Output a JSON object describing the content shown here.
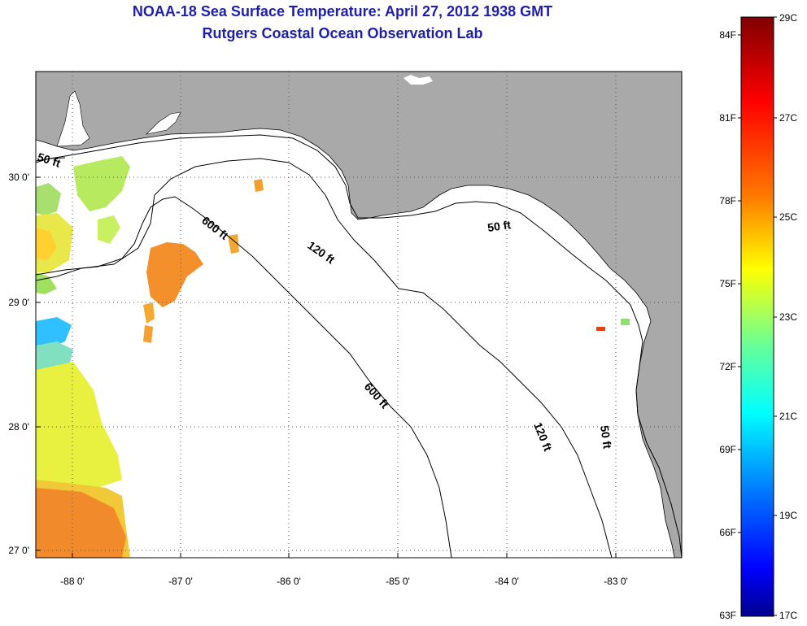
{
  "title": {
    "line1": "NOAA-18 Sea Surface Temperature:  April 27, 2012 1938 GMT",
    "line2": "Rutgers Coastal Ocean Observation Lab"
  },
  "map": {
    "lon_ticks": [
      "-88 0'",
      "-87 0'",
      "-86 0'",
      "-85 0'",
      "-84 0'",
      "-83 0'"
    ],
    "lat_ticks": [
      "30 0'",
      "29 0'",
      "28 0'",
      "27 0'"
    ],
    "contour_labels": [
      "50 ft",
      "600 ft",
      "120 ft",
      "50 ft",
      "600 ft",
      "120 ft",
      "50 ft"
    ],
    "colors": {
      "land": "#a9a9a9",
      "water": "#ffffff",
      "coast": "#000000",
      "grid": "#555555"
    }
  },
  "colorbar": {
    "fahrenheit": [
      "84F",
      "81F",
      "78F",
      "75F",
      "72F",
      "69F",
      "66F",
      "63F"
    ],
    "celsius": [
      "29C",
      "27C",
      "25C",
      "23C",
      "21C",
      "19C",
      "17C"
    ],
    "stops": [
      "#7f0000",
      "#ff0000",
      "#ff8000",
      "#ffff00",
      "#80ff80",
      "#00ffff",
      "#0080ff",
      "#0000ff",
      "#00008f"
    ]
  }
}
